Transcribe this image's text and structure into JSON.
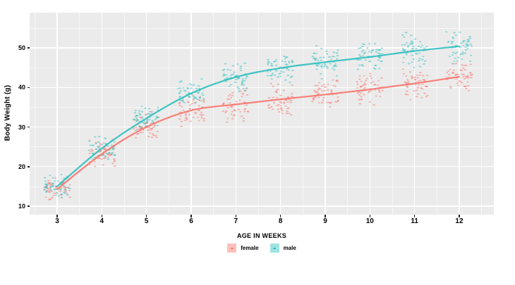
{
  "chart_data": {
    "type": "scatter",
    "title": "",
    "xlabel": "AGE IN WEEKS",
    "ylabel": "Body Weight (g)",
    "x_ticks": [
      3,
      4,
      5,
      6,
      7,
      8,
      9,
      10,
      11,
      12
    ],
    "y_ticks": [
      10,
      20,
      30,
      40,
      50
    ],
    "x_minor_ticks": [
      2.5,
      3.5,
      4.5,
      5.5,
      6.5,
      7.5,
      8.5,
      9.5,
      10.5,
      11.5,
      12.5
    ],
    "y_minor_ticks": [
      15,
      25,
      35,
      45,
      55
    ],
    "xlim": [
      2.38,
      12.78
    ],
    "ylim": [
      7.9,
      58.9
    ],
    "grid": true,
    "legend_position": "bottom",
    "panel_bg": "#EBEBEB",
    "grid_color": "#FFFFFF",
    "weeks": [
      3,
      4,
      5,
      6,
      7,
      8,
      9,
      10,
      11,
      12
    ],
    "series": [
      {
        "name": "female",
        "color": "#F8766D",
        "smooth_line": [
          14.3,
          23.2,
          30.0,
          34.2,
          35.7,
          37.0,
          38.2,
          39.5,
          41.0,
          42.7
        ],
        "cluster_halfspread": [
          3.0,
          3.8,
          4.0,
          4.4,
          4.6,
          4.4,
          4.4,
          4.5,
          4.6,
          4.6
        ],
        "points_per_week": 55
      },
      {
        "name": "male",
        "color": "#2DBFBF",
        "smooth_line": [
          15.0,
          24.6,
          32.2,
          38.5,
          42.6,
          44.9,
          46.4,
          47.7,
          49.2,
          50.4
        ],
        "cluster_halfspread": [
          3.2,
          3.8,
          3.6,
          4.0,
          4.2,
          4.4,
          4.4,
          4.6,
          4.8,
          4.8
        ],
        "points_per_week": 55
      }
    ],
    "jitter_halfwidth_weeks": 0.29,
    "point_opacity": 0.5
  },
  "legend": {
    "items": [
      {
        "label": "female",
        "color": "#F8766D"
      },
      {
        "label": "male",
        "color": "#2DBFBF"
      }
    ]
  }
}
